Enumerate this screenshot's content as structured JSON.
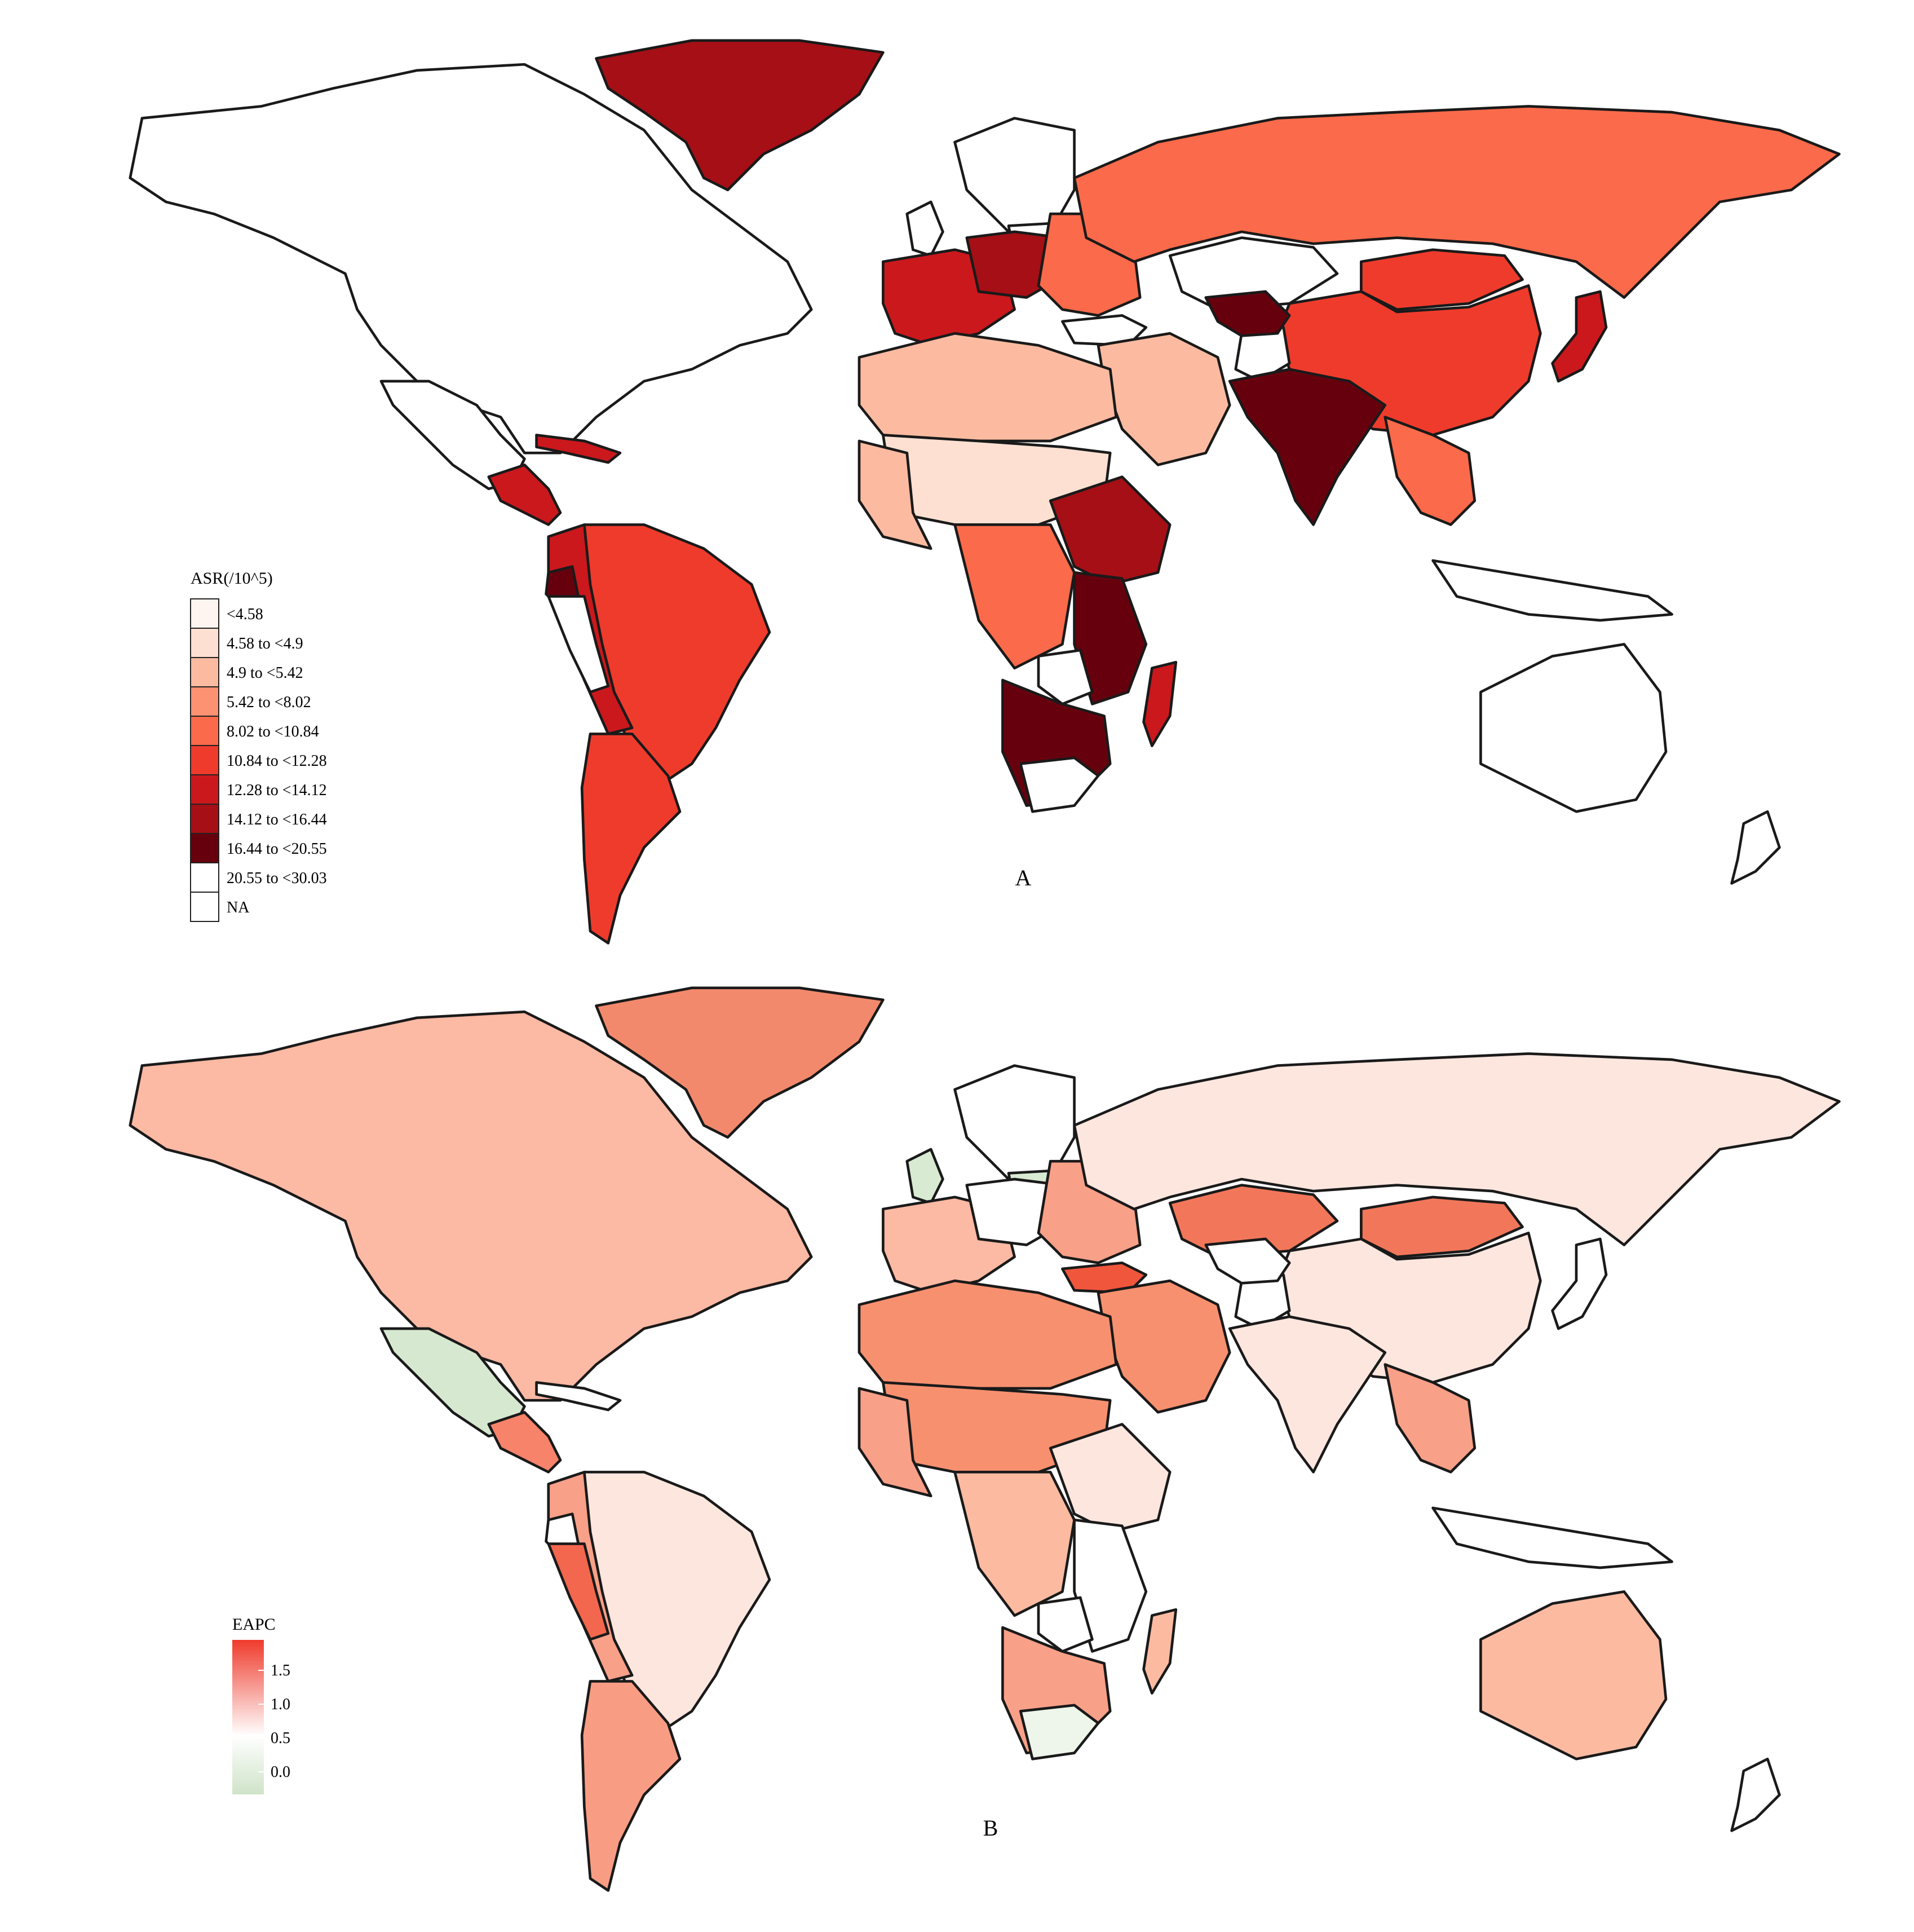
{
  "panel_a": {
    "label": "A",
    "legend": {
      "title": "ASR(/10^5)",
      "items": [
        {
          "label": "<4.58",
          "color": "#fff5f0"
        },
        {
          "label": "4.58 to <4.9",
          "color": "#fee0d2"
        },
        {
          "label": "4.9 to <5.42",
          "color": "#fcbba1"
        },
        {
          "label": "5.42 to <8.02",
          "color": "#fc9272"
        },
        {
          "label": "8.02 to <10.84",
          "color": "#fb6a4a"
        },
        {
          "label": "10.84 to <12.28",
          "color": "#ef3b2c"
        },
        {
          "label": "12.28 to <14.12",
          "color": "#cb181d"
        },
        {
          "label": "14.12 to <16.44",
          "color": "#a50f15"
        },
        {
          "label": "16.44 to <20.55",
          "color": "#67000d"
        },
        {
          "label": "20.55 to <30.03",
          "color": "#ffffff"
        },
        {
          "label": "NA",
          "color": "#ffffff"
        }
      ]
    },
    "regions": {
      "north_america": "#ffffff",
      "greenland": "#a50f15",
      "central_america": "#cb181d",
      "caribbean": "#cb181d",
      "south_america": "#ef3b2c",
      "south_america_west": "#cb181d",
      "ecuador": "#67000d",
      "argentina": "#ef3b2c",
      "europe_west": "#cb181d",
      "europe_central": "#a50f15",
      "europe_east": "#fb6a4a",
      "scandinavia": "#ffffff",
      "russia": "#fb6a4a",
      "kazakhstan": "#ffffff",
      "mongolia": "#ef3b2c",
      "china": "#ef3b2c",
      "japan": "#cb181d",
      "middle_east": "#fcbba1",
      "afghanistan": "#ffffff",
      "pakistan": "#67000d",
      "india": "#67000d",
      "southeast_asia": "#fb6a4a",
      "north_africa": "#fcbba1",
      "sahel": "#fee0d2",
      "west_africa": "#fcbba1",
      "central_africa": "#fb6a4a",
      "east_africa": "#a50f15",
      "east_africa_south": "#67000d",
      "zambia": "#ffffff",
      "southern_africa": "#67000d",
      "madagascar": "#cb181d",
      "australia": "#ffffff",
      "indonesia": "#ffffff",
      "new_zealand": "#ffffff"
    }
  },
  "panel_b": {
    "label": "B",
    "legend": {
      "title": "EAPC",
      "ticks": [
        "1.5",
        "1.0",
        "0.5",
        "0.0"
      ],
      "color_high": "#ef3b2c",
      "color_mid": "#ffffff",
      "color_low": "#cfe3c8"
    },
    "regions": {
      "north_america": "#fcb9a3",
      "greenland": "#f3896c",
      "mexico": "#d6e8cf",
      "central_america": "#f6836a",
      "south_america": "#fde6de",
      "peru": "#f2674d",
      "south_america_west": "#f8a088",
      "argentina": "#f89d84",
      "europe_west": "#fcb9a3",
      "uk": "#d9ead3",
      "poland": "#d9ead3",
      "europe_east": "#f8a088",
      "russia": "#fde6de",
      "kazakhstan": "#f2775a",
      "mongolia": "#f2775a",
      "china": "#fde6de",
      "turkey": "#f0563c",
      "middle_east": "#f7906f",
      "india": "#fde6de",
      "southeast_asia": "#f8a088",
      "north_africa": "#f7906f",
      "sahel": "#f7906f",
      "west_africa": "#f8a088",
      "central_africa": "#fcbba1",
      "east_africa": "#fde6de",
      "southern_africa": "#f8a088",
      "botswana": "#d9ead3",
      "south_africa": "#eef5ea",
      "madagascar": "#fcbba1",
      "australia": "#fcbba1",
      "indonesia": "#ffffff",
      "new_zealand": "#ffffff"
    }
  }
}
